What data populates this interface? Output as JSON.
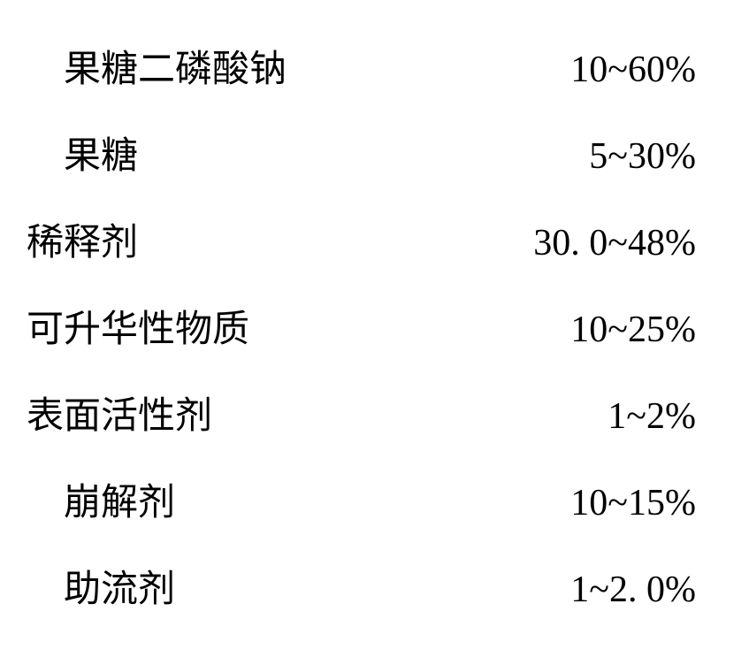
{
  "table": {
    "background_color": "#ffffff",
    "text_color": "#000000",
    "font_family": "SimSun",
    "font_size_pt": 32,
    "rows": [
      {
        "label": "果糖二磷酸钠",
        "value": "10~60%",
        "indent": 2
      },
      {
        "label": "果糖",
        "value": "5~30%",
        "indent": 2
      },
      {
        "label": "稀释剂",
        "value": "30. 0~48%",
        "indent": 0
      },
      {
        "label": "可升华性物质",
        "value": "10~25%",
        "indent": 0
      },
      {
        "label": "表面活性剂",
        "value": "1~2%",
        "indent": 0
      },
      {
        "label": "崩解剂",
        "value": "10~15%",
        "indent": 2
      },
      {
        "label": "助流剂",
        "value": "1~2. 0%",
        "indent": 2
      }
    ]
  }
}
